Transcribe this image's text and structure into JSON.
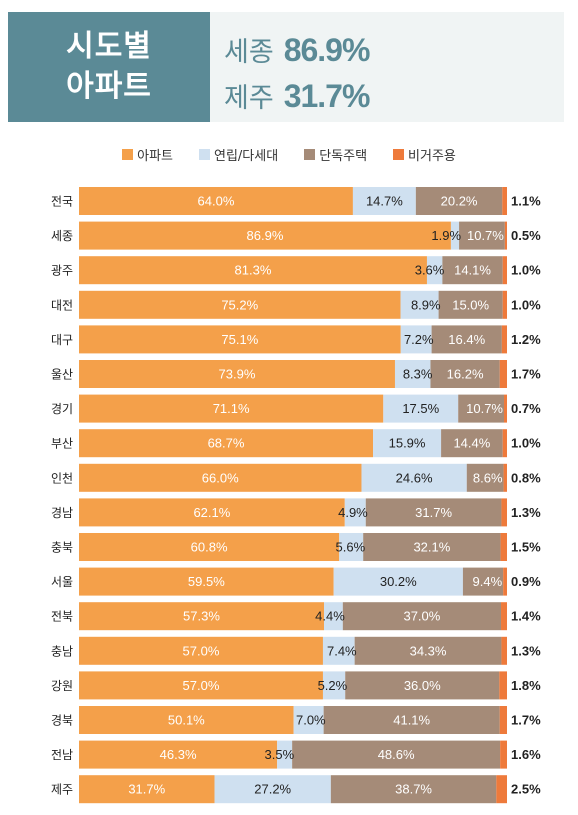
{
  "header": {
    "title_line1": "시도별",
    "title_line2": "아파트",
    "stats": [
      {
        "name": "세종",
        "value": "86.9%"
      },
      {
        "name": "제주",
        "value": "31.7%"
      }
    ]
  },
  "colors": {
    "header_bg": "#5b8a96",
    "header_text": "#5b8a96",
    "apartment": "#f4a04a",
    "rowhouse": "#cfe0f0",
    "detached": "#a58b78",
    "nonresidential": "#ee7a3b"
  },
  "chart_data": {
    "type": "bar",
    "orientation": "horizontal",
    "stacked": true,
    "percent": true,
    "legend_position": "top",
    "categories": [
      "전국",
      "세종",
      "광주",
      "대전",
      "대구",
      "울산",
      "경기",
      "부산",
      "인천",
      "경남",
      "충북",
      "서울",
      "전북",
      "충남",
      "강원",
      "경북",
      "전남",
      "제주"
    ],
    "series": [
      {
        "name": "아파트",
        "values": [
          64.0,
          86.9,
          81.3,
          75.2,
          75.1,
          73.9,
          71.1,
          68.7,
          66.0,
          62.1,
          60.8,
          59.5,
          57.3,
          57.0,
          57.0,
          50.1,
          46.3,
          31.7
        ]
      },
      {
        "name": "연립/다세대",
        "values": [
          14.7,
          1.9,
          3.6,
          8.9,
          7.2,
          8.3,
          17.5,
          15.9,
          24.6,
          4.9,
          5.6,
          30.2,
          4.4,
          7.4,
          5.2,
          7.0,
          3.5,
          27.2
        ]
      },
      {
        "name": "단독주택",
        "values": [
          20.2,
          10.7,
          14.1,
          15.0,
          16.4,
          16.2,
          10.7,
          14.4,
          8.6,
          31.7,
          32.1,
          9.4,
          37.0,
          34.3,
          36.0,
          41.1,
          48.6,
          38.7
        ]
      },
      {
        "name": "비거주용",
        "values": [
          1.1,
          0.5,
          1.0,
          1.0,
          1.2,
          1.7,
          0.7,
          1.0,
          0.8,
          1.3,
          1.5,
          0.9,
          1.4,
          1.3,
          1.8,
          1.7,
          1.6,
          2.5
        ]
      }
    ]
  }
}
